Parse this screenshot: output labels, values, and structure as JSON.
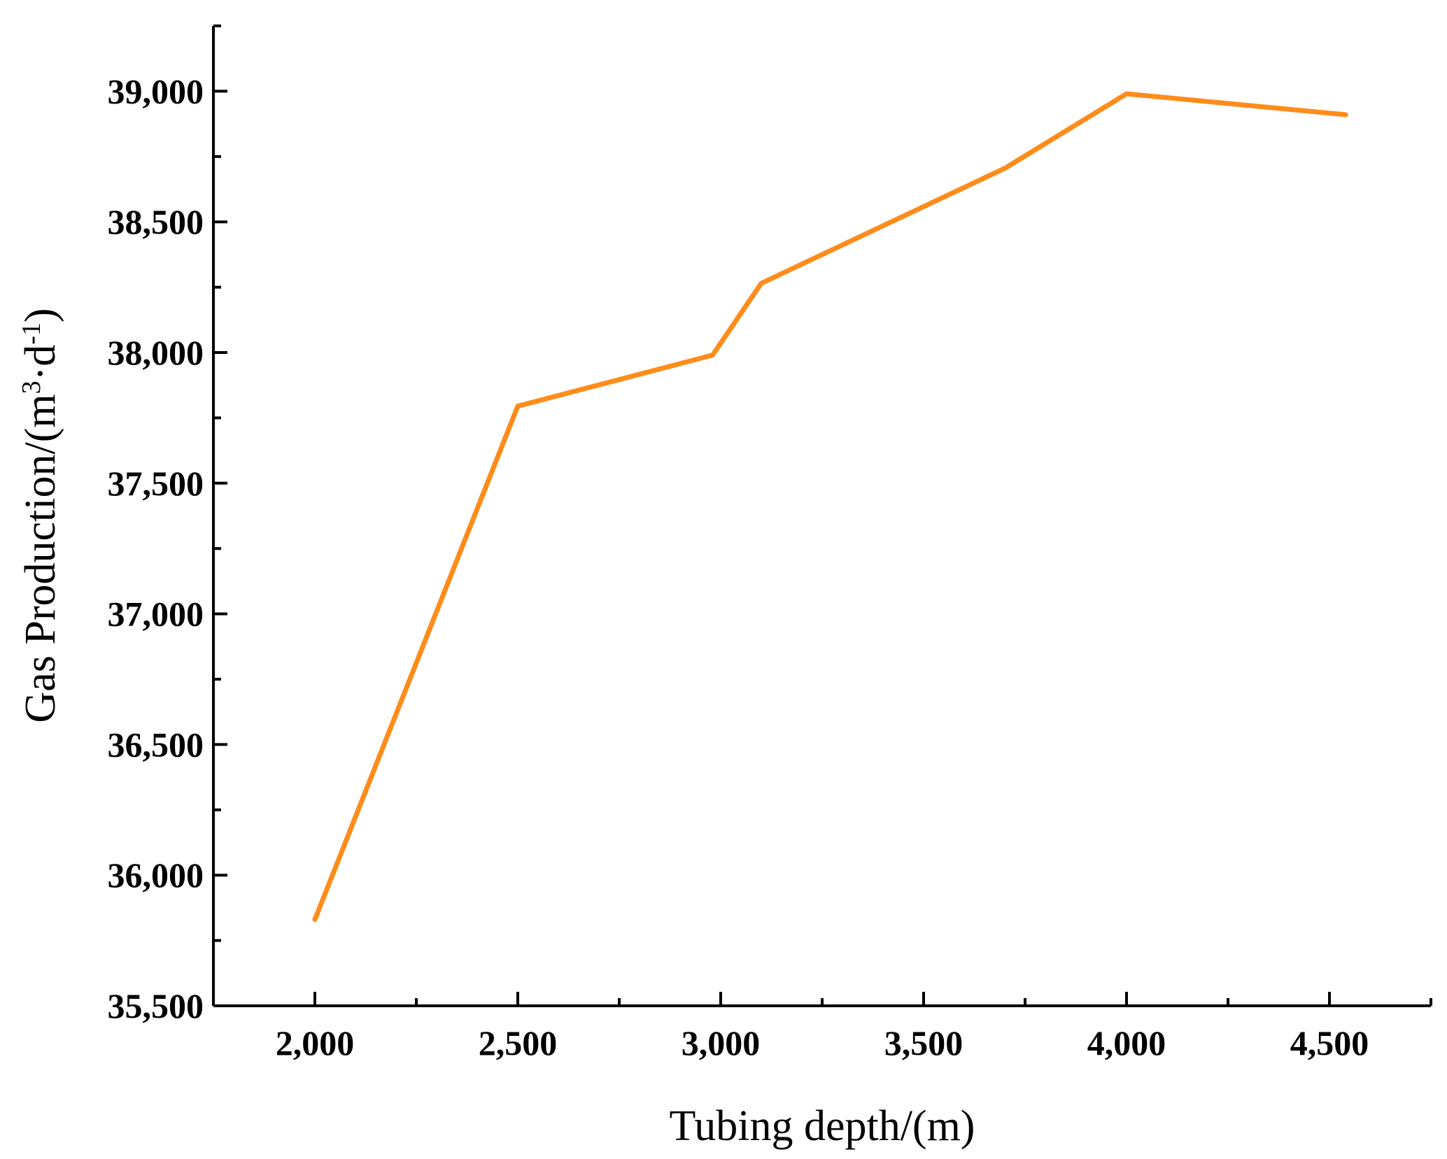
{
  "chart_data": {
    "type": "line",
    "xlabel": "Tubing depth/(m)",
    "ylabel": {
      "prefix": "Gas Production/(m",
      "sup1": "3",
      "middle": "·d",
      "sup2": "-1",
      "suffix": ")"
    },
    "xlim": [
      1750,
      4750
    ],
    "ylim": [
      35500,
      39250
    ],
    "x_major_ticks": [
      2000,
      2500,
      3000,
      3500,
      4000,
      4500
    ],
    "x_tick_labels": [
      "2,000",
      "2,500",
      "3,000",
      "3,500",
      "4,000",
      "4,500"
    ],
    "x_minor_ticks": [
      1750,
      2250,
      2750,
      3250,
      3750,
      4250,
      4750
    ],
    "y_major_ticks": [
      35500,
      36000,
      36500,
      37000,
      37500,
      38000,
      38500,
      39000
    ],
    "y_tick_labels": [
      "35,500",
      "36,000",
      "36,500",
      "37,000",
      "37,500",
      "38,000",
      "38,500",
      "39,000"
    ],
    "y_minor_ticks": [
      35750,
      36250,
      36750,
      37250,
      37750,
      38250,
      38750,
      39250
    ],
    "grid": false,
    "legend": "none",
    "series": [
      {
        "color": "#FF8C1A",
        "x": [
          2000,
          2500,
          2980,
          3100,
          3700,
          4000,
          4540
        ],
        "y": [
          35830,
          37795,
          37990,
          38265,
          38705,
          38990,
          38910
        ]
      }
    ]
  }
}
